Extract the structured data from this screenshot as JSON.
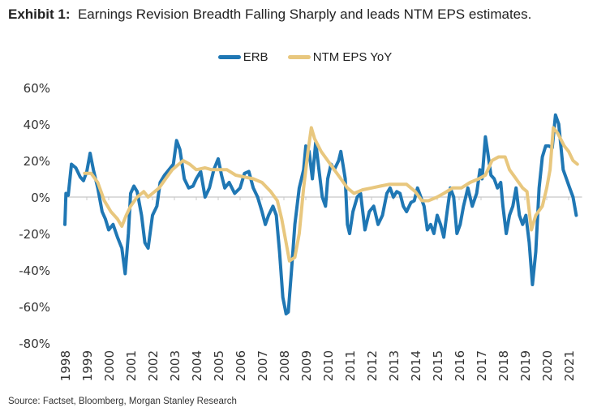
{
  "title_bold": "Exhibit 1:",
  "title_rest": "Earnings Revision Breadth Falling Sharply and leads NTM EPS estimates.",
  "source": "Source: Factset, Bloomberg, Morgan Stanley Research",
  "chart_data": {
    "type": "line",
    "title": "Earnings Revision Breadth Falling Sharply and leads NTM EPS estimates.",
    "xlabel": "",
    "ylabel": "",
    "ylim": [
      -80,
      60
    ],
    "xlim": [
      1998,
      2021.5
    ],
    "yticks": [
      60,
      40,
      20,
      0,
      -20,
      -40,
      -60,
      -80
    ],
    "ytick_labels": [
      "60%",
      "40%",
      "20%",
      "0%",
      "-20%",
      "-40%",
      "-60%",
      "-80%"
    ],
    "xtick_labels": [
      "1998",
      "1999",
      "2000",
      "2001",
      "2002",
      "2003",
      "2004",
      "2005",
      "2006",
      "2007",
      "2008",
      "2009",
      "2010",
      "2011",
      "2012",
      "2013",
      "2014",
      "2015",
      "2016",
      "2017",
      "2018",
      "2019",
      "2020",
      "2021"
    ],
    "legend_position": "top-center",
    "grid": false,
    "series": [
      {
        "name": "ERB",
        "color": "#1f77b4",
        "x": [
          1998.0,
          1998.05,
          1998.15,
          1998.3,
          1998.5,
          1998.7,
          1998.85,
          1999.0,
          1999.15,
          1999.3,
          1999.5,
          1999.7,
          1999.85,
          2000.0,
          2000.2,
          2000.4,
          2000.6,
          2000.75,
          2000.9,
          2001.0,
          2001.15,
          2001.3,
          2001.5,
          2001.65,
          2001.8,
          2002.0,
          2002.2,
          2002.35,
          2002.55,
          2002.75,
          2002.95,
          2003.1,
          2003.25,
          2003.45,
          2003.65,
          2003.85,
          2004.0,
          2004.2,
          2004.4,
          2004.6,
          2004.8,
          2005.0,
          2005.15,
          2005.3,
          2005.5,
          2005.75,
          2006.0,
          2006.2,
          2006.4,
          2006.6,
          2006.8,
          2007.0,
          2007.15,
          2007.3,
          2007.5,
          2007.65,
          2007.8,
          2007.95,
          2008.1,
          2008.2,
          2008.35,
          2008.5,
          2008.7,
          2008.9,
          2009.0,
          2009.15,
          2009.3,
          2009.45,
          2009.6,
          2009.75,
          2009.9,
          2010.0,
          2010.15,
          2010.3,
          2010.5,
          2010.6,
          2010.8,
          2010.9,
          2011.0,
          2011.15,
          2011.35,
          2011.5,
          2011.7,
          2011.9,
          2012.1,
          2012.3,
          2012.5,
          2012.7,
          2012.85,
          2013.0,
          2013.15,
          2013.3,
          2013.45,
          2013.6,
          2013.8,
          2013.95,
          2014.1,
          2014.25,
          2014.4,
          2014.55,
          2014.7,
          2014.85,
          2015.0,
          2015.15,
          2015.3,
          2015.45,
          2015.6,
          2015.75,
          2015.9,
          2016.05,
          2016.2,
          2016.4,
          2016.6,
          2016.8,
          2016.95,
          2017.05,
          2017.2,
          2017.3,
          2017.45,
          2017.6,
          2017.75,
          2017.9,
          2018.0,
          2018.15,
          2018.3,
          2018.45,
          2018.6,
          2018.75,
          2018.9,
          2019.05,
          2019.2,
          2019.35,
          2019.5,
          2019.65,
          2019.8,
          2019.95,
          2020.1,
          2020.25,
          2020.4,
          2020.55,
          2020.75,
          2020.9,
          2021.05,
          2021.2,
          2021.35
        ],
        "values": [
          -15,
          2,
          1,
          18,
          16,
          11,
          9,
          14,
          24,
          15,
          5,
          -8,
          -12,
          -18,
          -15,
          -22,
          -28,
          -42,
          -20,
          2,
          6,
          3,
          -10,
          -25,
          -28,
          -10,
          -5,
          8,
          12,
          15,
          18,
          31,
          26,
          10,
          5,
          6,
          10,
          14,
          0,
          5,
          15,
          21,
          12,
          5,
          8,
          2,
          5,
          13,
          14,
          5,
          0,
          -8,
          -15,
          -10,
          -5,
          -10,
          -30,
          -55,
          -64,
          -63,
          -40,
          -15,
          5,
          15,
          28,
          25,
          10,
          30,
          15,
          0,
          -5,
          10,
          18,
          15,
          20,
          25,
          10,
          -15,
          -20,
          -8,
          0,
          2,
          -18,
          -8,
          -5,
          -15,
          -10,
          2,
          5,
          0,
          3,
          2,
          -5,
          -8,
          -3,
          -2,
          5,
          0,
          -5,
          -18,
          -15,
          -20,
          -10,
          -15,
          -22,
          -8,
          5,
          0,
          -20,
          -15,
          -5,
          5,
          -5,
          2,
          15,
          10,
          33,
          25,
          12,
          10,
          5,
          8,
          -5,
          -20,
          -10,
          -5,
          5,
          -10,
          -15,
          -10,
          -25,
          -48,
          -30,
          5,
          22,
          28,
          28,
          27,
          45,
          40,
          15,
          10,
          5,
          0,
          -10
        ]
      },
      {
        "name": "NTM EPS YoY",
        "color": "#e8c77e",
        "x": [
          1998.9,
          1999.2,
          1999.5,
          1999.8,
          2000.1,
          2000.4,
          2000.6,
          2000.8,
          2001.0,
          2001.3,
          2001.6,
          2001.8,
          2002.0,
          2002.3,
          2002.6,
          2002.9,
          2003.2,
          2003.4,
          2003.7,
          2004.0,
          2004.4,
          2004.7,
          2005.0,
          2005.4,
          2005.8,
          2006.2,
          2006.6,
          2007.0,
          2007.4,
          2007.7,
          2007.9,
          2008.1,
          2008.25,
          2008.5,
          2008.7,
          2008.9,
          2009.1,
          2009.25,
          2009.4,
          2009.7,
          2010.0,
          2010.3,
          2010.6,
          2010.9,
          2011.2,
          2011.6,
          2012.0,
          2012.4,
          2012.8,
          2013.2,
          2013.6,
          2014.0,
          2014.3,
          2014.6,
          2015.0,
          2015.3,
          2015.7,
          2016.1,
          2016.5,
          2016.9,
          2017.2,
          2017.5,
          2017.8,
          2018.1,
          2018.3,
          2018.6,
          2018.9,
          2019.1,
          2019.3,
          2019.5,
          2019.8,
          2020.0,
          2020.15,
          2020.3,
          2020.5,
          2020.8,
          2021.0,
          2021.2,
          2021.4
        ],
        "values": [
          13,
          13,
          8,
          -2,
          -8,
          -12,
          -16,
          -10,
          -5,
          0,
          3,
          0,
          2,
          5,
          10,
          15,
          18,
          20,
          18,
          15,
          16,
          15,
          15,
          15,
          12,
          11,
          10,
          8,
          3,
          -2,
          -12,
          -25,
          -35,
          -33,
          -20,
          5,
          25,
          38,
          32,
          25,
          20,
          15,
          10,
          5,
          2,
          4,
          5,
          6,
          7,
          7,
          7,
          3,
          -2,
          -2,
          0,
          2,
          5,
          5,
          8,
          10,
          12,
          20,
          22,
          22,
          15,
          10,
          5,
          3,
          -18,
          -10,
          -5,
          5,
          15,
          38,
          35,
          28,
          25,
          20,
          18
        ]
      }
    ]
  }
}
